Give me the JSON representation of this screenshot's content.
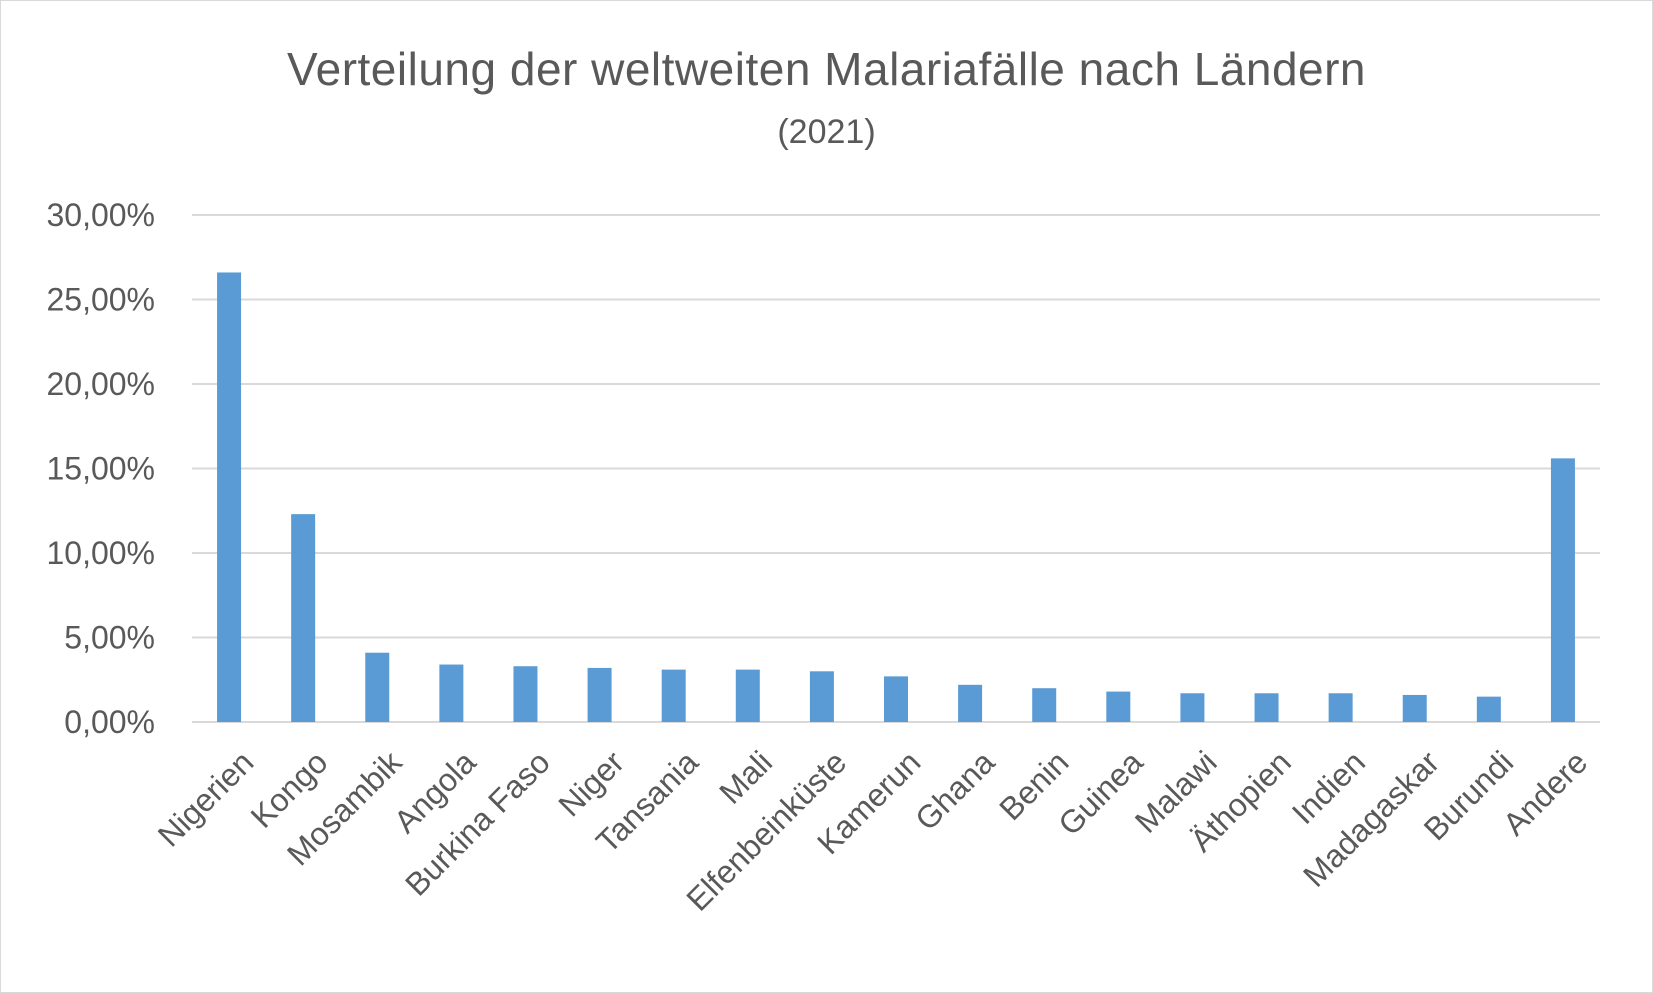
{
  "chart_data": {
    "type": "bar",
    "title": "Verteilung der weltweiten Malariafälle nach Ländern",
    "subtitle": "(2021)",
    "xlabel": "",
    "ylabel": "",
    "categories": [
      "Nigerien",
      "Kongo",
      "Mosambik",
      "Angola",
      "Burkina Faso",
      "Niger",
      "Tansania",
      "Mali",
      "Elfenbeinküste",
      "Kamerun",
      "Ghana",
      "Benin",
      "Guinea",
      "Malawi",
      "Äthopien",
      "Indien",
      "Madagaskar",
      "Burundi",
      "Andere"
    ],
    "values": [
      26.6,
      12.3,
      4.1,
      3.4,
      3.3,
      3.2,
      3.1,
      3.1,
      3.0,
      2.7,
      2.2,
      2.0,
      1.8,
      1.7,
      1.7,
      1.7,
      1.6,
      1.5,
      15.6
    ],
    "ylim": [
      0,
      30
    ],
    "yticks": [
      0,
      5,
      10,
      15,
      20,
      25,
      30
    ],
    "ytick_labels": [
      "0,00%",
      "5,00%",
      "10,00%",
      "15,00%",
      "20,00%",
      "25,00%",
      "30,00%"
    ],
    "grid": true,
    "legend": "none",
    "colors": {
      "bar": "#5b9bd5",
      "grid": "#d9d9d9",
      "text": "#595959"
    }
  }
}
